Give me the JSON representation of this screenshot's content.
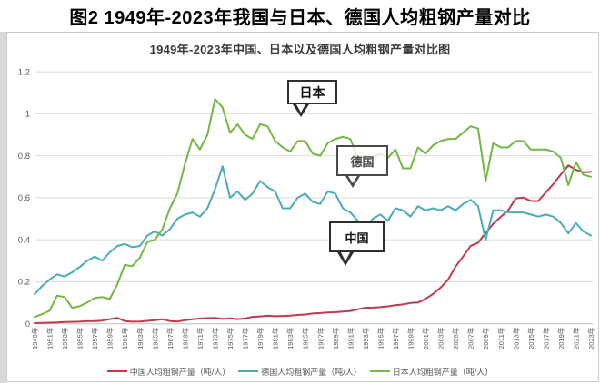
{
  "page": {
    "title": "图2 1949年-2023年我国与日本、德国人均粗钢产量对比"
  },
  "chart": {
    "title": "1949年-2023年中国、日本以及德国人均粗钢产量对比图",
    "callouts": {
      "japan": {
        "label": "日本"
      },
      "germany": {
        "label": "德国"
      },
      "china": {
        "label": "中国"
      }
    }
  },
  "chart_data": {
    "type": "line",
    "title": "1949年-2023年中国、日本以及德国人均粗钢产量对比图",
    "xlabel": "",
    "ylabel": "",
    "x_start": 1949,
    "x_end": 2023,
    "x_tick_step_years": 2,
    "x_tick_labels": [
      "1949年",
      "1951年",
      "1953年",
      "1955年",
      "1957年",
      "1959年",
      "1961年",
      "1963年",
      "1965年",
      "1967年",
      "1969年",
      "1971年",
      "1973年",
      "1975年",
      "1977年",
      "1979年",
      "1981年",
      "1983年",
      "1985年",
      "1987年",
      "1989年",
      "1991年",
      "1993年",
      "1995年",
      "1997年",
      "1999年",
      "2001年",
      "2003年",
      "2005年",
      "2007年",
      "2009年",
      "2011年",
      "2013年",
      "2015年",
      "2017年",
      "2019年",
      "2021年",
      "2023年"
    ],
    "ylim": [
      0,
      1.2
    ],
    "yticks": [
      "0",
      "0.2",
      "0.4",
      "0.6",
      "0.8",
      "1",
      "1.2"
    ],
    "grid": true,
    "legend_position": "bottom",
    "colors": {
      "china": "#c23a4d",
      "germany": "#4aacb8",
      "japan": "#73b843",
      "gridline": "#dcdcdc",
      "axis_line": "#bfbfbf",
      "tick_text": "#595959"
    },
    "series": [
      {
        "id": "china",
        "name": "中国人均粗钢产量（吨/人）",
        "color": "#c23a4d",
        "values": [
          0.003,
          0.004,
          0.005,
          0.006,
          0.008,
          0.009,
          0.01,
          0.012,
          0.013,
          0.015,
          0.022,
          0.028,
          0.013,
          0.01,
          0.011,
          0.014,
          0.017,
          0.021,
          0.013,
          0.011,
          0.017,
          0.021,
          0.025,
          0.027,
          0.028,
          0.023,
          0.026,
          0.022,
          0.025,
          0.033,
          0.035,
          0.038,
          0.036,
          0.037,
          0.039,
          0.042,
          0.044,
          0.049,
          0.051,
          0.054,
          0.055,
          0.058,
          0.061,
          0.069,
          0.076,
          0.077,
          0.079,
          0.083,
          0.088,
          0.092,
          0.099,
          0.101,
          0.119,
          0.142,
          0.172,
          0.21,
          0.272,
          0.32,
          0.371,
          0.386,
          0.432,
          0.476,
          0.509,
          0.54,
          0.597,
          0.601,
          0.585,
          0.584,
          0.626,
          0.665,
          0.711,
          0.754,
          0.733,
          0.721,
          0.723
        ]
      },
      {
        "id": "germany",
        "name": "德国人均粗钢产量（吨/人）",
        "color": "#4aacb8",
        "values": [
          0.14,
          0.18,
          0.21,
          0.235,
          0.225,
          0.245,
          0.27,
          0.3,
          0.32,
          0.3,
          0.34,
          0.37,
          0.38,
          0.365,
          0.37,
          0.42,
          0.44,
          0.42,
          0.45,
          0.5,
          0.52,
          0.53,
          0.51,
          0.55,
          0.64,
          0.75,
          0.6,
          0.63,
          0.59,
          0.62,
          0.68,
          0.65,
          0.63,
          0.55,
          0.55,
          0.6,
          0.62,
          0.58,
          0.57,
          0.63,
          0.62,
          0.55,
          0.53,
          0.49,
          0.46,
          0.5,
          0.52,
          0.49,
          0.55,
          0.54,
          0.51,
          0.56,
          0.54,
          0.55,
          0.54,
          0.56,
          0.54,
          0.57,
          0.59,
          0.56,
          0.4,
          0.54,
          0.54,
          0.53,
          0.53,
          0.53,
          0.52,
          0.51,
          0.52,
          0.51,
          0.48,
          0.43,
          0.48,
          0.44,
          0.42
        ]
      },
      {
        "id": "japan",
        "name": "日本人均粗钢产量（吨/人）",
        "color": "#73b843",
        "values": [
          0.032,
          0.046,
          0.062,
          0.134,
          0.127,
          0.076,
          0.084,
          0.101,
          0.123,
          0.127,
          0.118,
          0.187,
          0.28,
          0.274,
          0.314,
          0.39,
          0.4,
          0.45,
          0.55,
          0.62,
          0.76,
          0.88,
          0.83,
          0.9,
          1.07,
          1.03,
          0.91,
          0.95,
          0.9,
          0.88,
          0.95,
          0.94,
          0.87,
          0.84,
          0.82,
          0.87,
          0.87,
          0.81,
          0.8,
          0.86,
          0.88,
          0.89,
          0.88,
          0.79,
          0.8,
          0.79,
          0.81,
          0.79,
          0.83,
          0.74,
          0.74,
          0.84,
          0.81,
          0.85,
          0.87,
          0.88,
          0.88,
          0.91,
          0.94,
          0.93,
          0.68,
          0.86,
          0.84,
          0.84,
          0.87,
          0.87,
          0.83,
          0.83,
          0.83,
          0.82,
          0.79,
          0.66,
          0.77,
          0.71,
          0.7
        ]
      }
    ]
  }
}
